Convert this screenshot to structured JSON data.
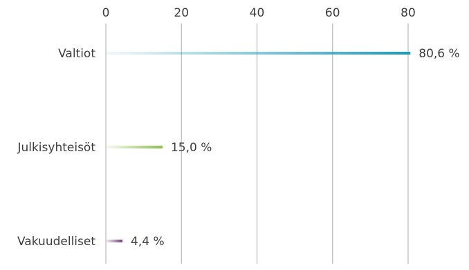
{
  "chart_data": {
    "type": "bar",
    "orientation": "horizontal",
    "title": "",
    "xlabel": "",
    "ylabel": "",
    "xlim": [
      0,
      80
    ],
    "x_ticks": [
      0,
      20,
      40,
      60,
      80
    ],
    "x_tick_labels": [
      "0",
      "20",
      "40",
      "60",
      "80"
    ],
    "categories": [
      "Valtiot",
      "Julkisyhteisöt",
      "Vakuudelliset"
    ],
    "values": [
      80.6,
      15.0,
      4.4
    ],
    "value_labels": [
      "80,6 %",
      "15,0 %",
      "4,4 %"
    ],
    "bar_colors": [
      "#1a9bbd",
      "#8cc04f",
      "#7a3d7d"
    ],
    "grid": true,
    "legend": "none"
  }
}
